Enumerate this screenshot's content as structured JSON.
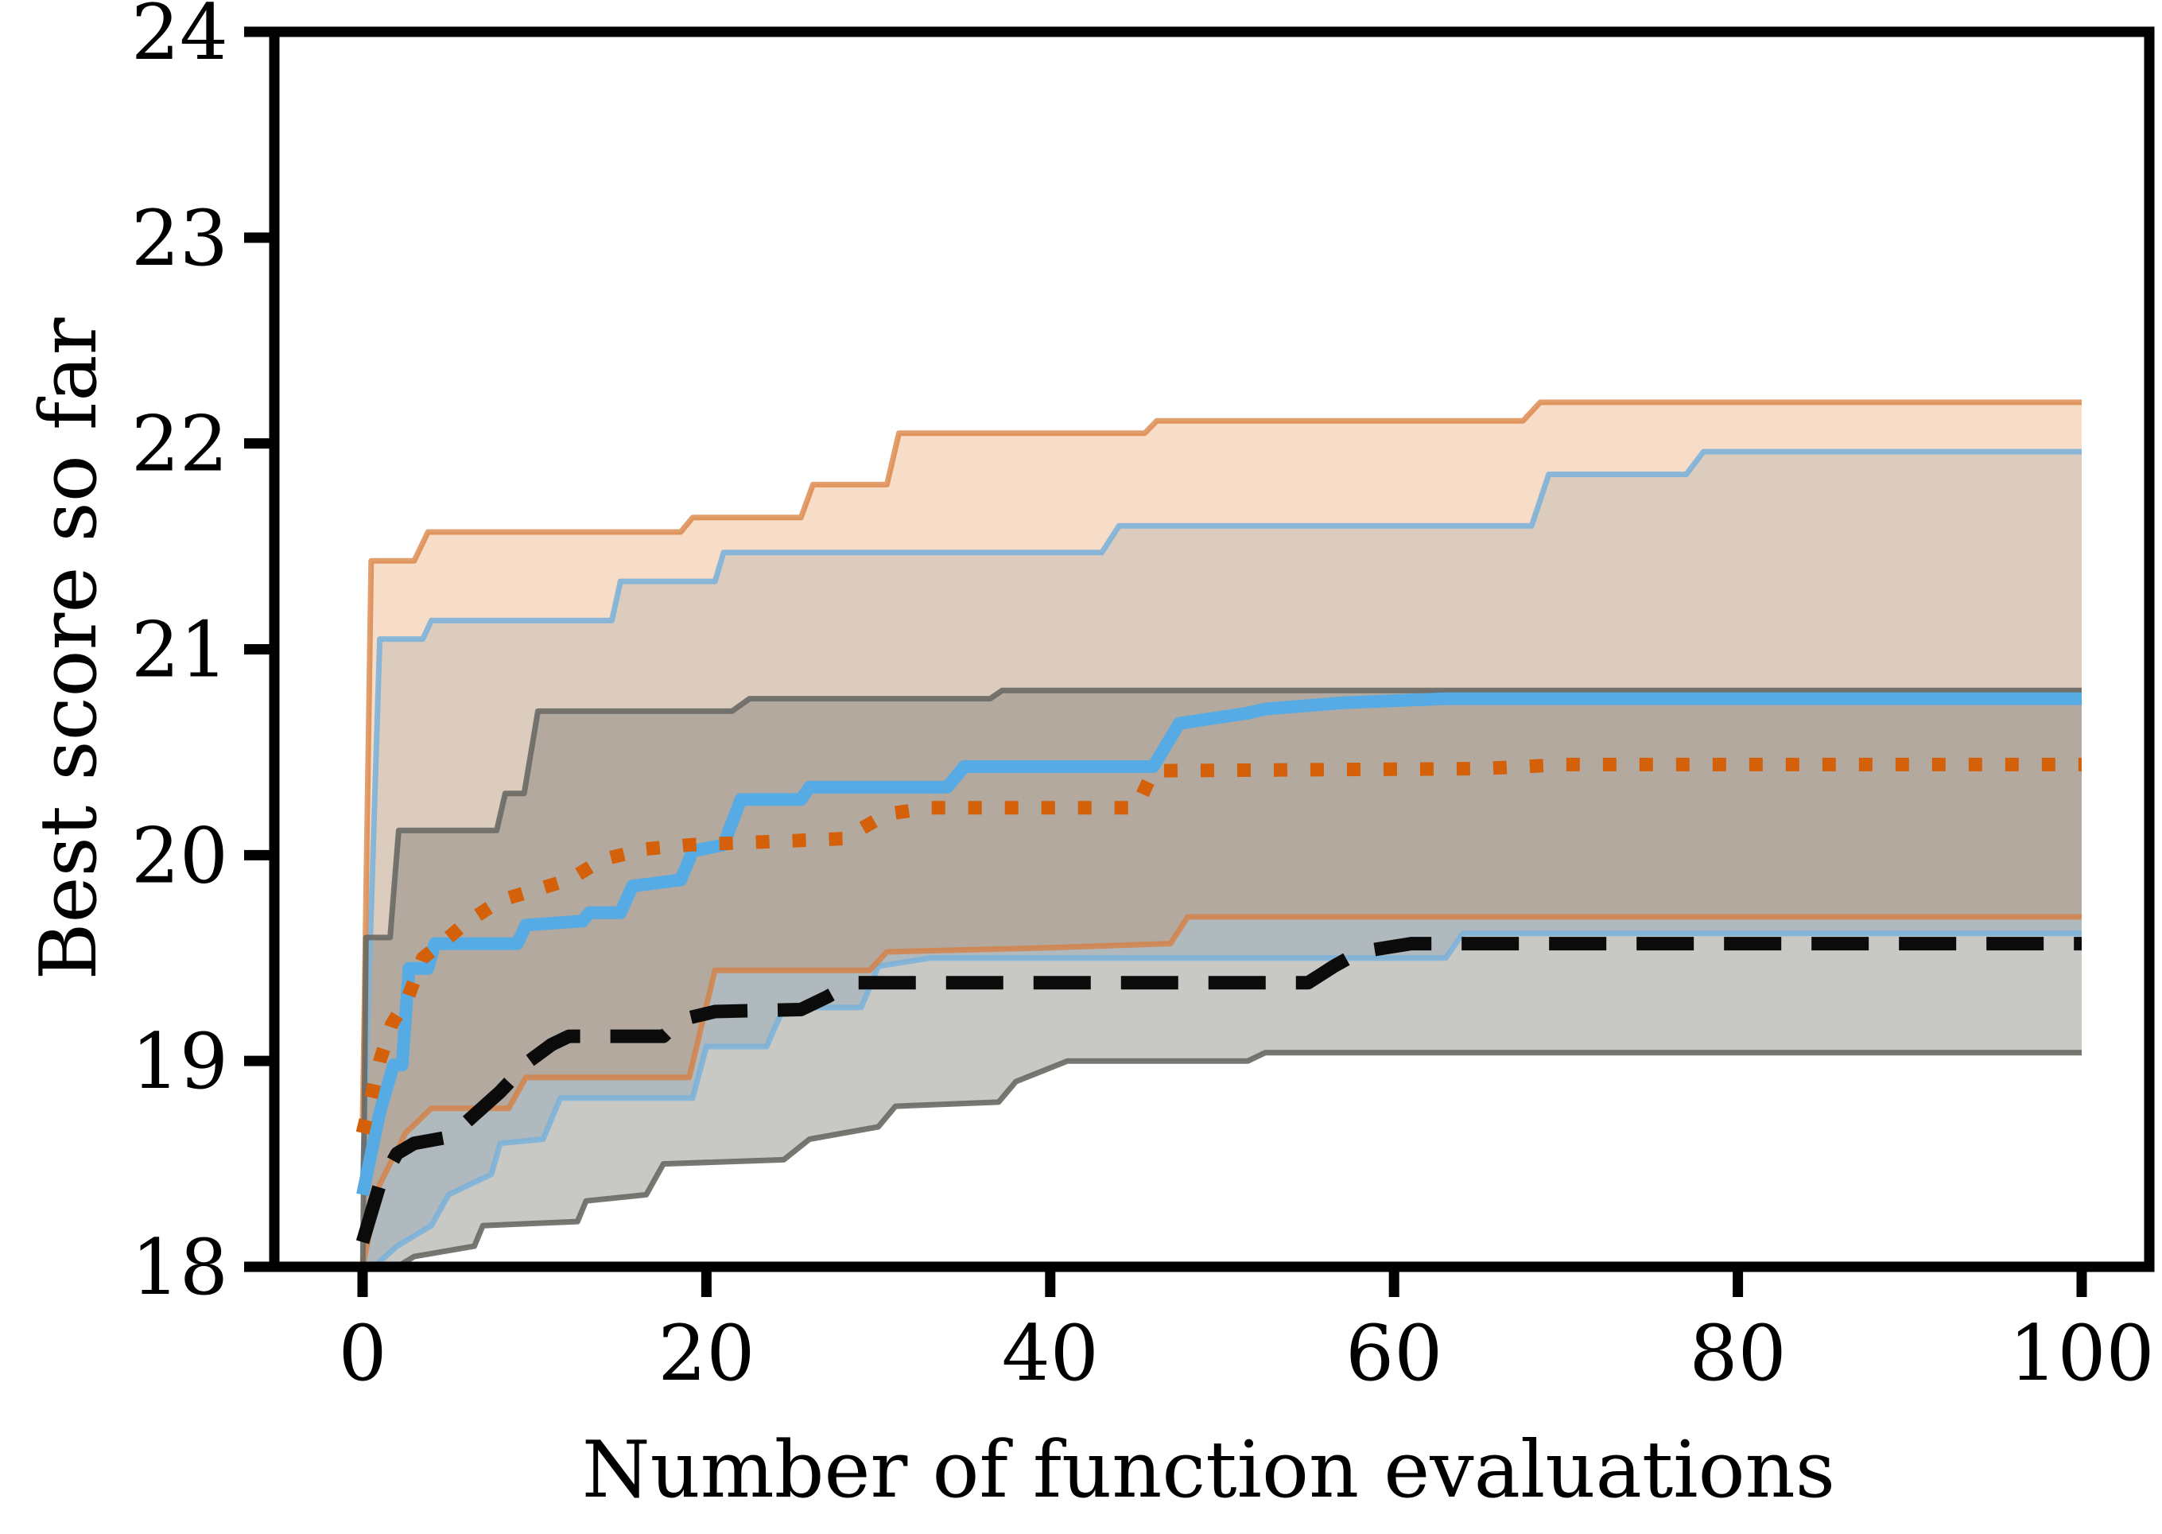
{
  "figure": {
    "background": "#ffffff",
    "frame_color": "#000000"
  },
  "chart_data": {
    "type": "line",
    "title": "",
    "xlabel": "Number of function evaluations",
    "ylabel": "Best score so far",
    "x_ticks": [
      0,
      20,
      40,
      60,
      80,
      100
    ],
    "y_ticks": [
      18,
      19,
      20,
      21,
      22,
      23,
      24
    ],
    "xlim": [
      -5.1,
      103.9
    ],
    "ylim": [
      18,
      24
    ],
    "grid": false,
    "legend_position": "none",
    "series": [
      {
        "name": "blue-solid",
        "line_style": "solid",
        "color": "#56abe4",
        "band_fill": "rgba(140,185,218,0.35)",
        "band_edge": "rgba(125,178,216,0.9)",
        "points": [
          [
            0,
            18.35
          ],
          [
            1,
            18.75
          ],
          [
            1.8,
            18.98
          ],
          [
            2.3,
            18.98
          ],
          [
            2.7,
            19.45
          ],
          [
            3.8,
            19.45
          ],
          [
            4.2,
            19.57
          ],
          [
            9,
            19.57
          ],
          [
            9.5,
            19.66
          ],
          [
            12.8,
            19.68
          ],
          [
            13.2,
            19.72
          ],
          [
            15,
            19.72
          ],
          [
            15.7,
            19.85
          ],
          [
            18.5,
            19.88
          ],
          [
            19.2,
            20.02
          ],
          [
            21,
            20.05
          ],
          [
            22,
            20.27
          ],
          [
            25.5,
            20.27
          ],
          [
            26,
            20.33
          ],
          [
            34,
            20.33
          ],
          [
            35,
            20.43
          ],
          [
            46,
            20.43
          ],
          [
            47.5,
            20.64
          ],
          [
            51.5,
            20.69
          ],
          [
            52.5,
            20.71
          ],
          [
            57,
            20.74
          ],
          [
            63,
            20.76
          ],
          [
            100,
            20.76
          ]
        ],
        "band_upper": [
          [
            0,
            18.4
          ],
          [
            1,
            21.05
          ],
          [
            3.5,
            21.05
          ],
          [
            4,
            21.14
          ],
          [
            14.5,
            21.14
          ],
          [
            15,
            21.33
          ],
          [
            20.5,
            21.33
          ],
          [
            21,
            21.47
          ],
          [
            43,
            21.47
          ],
          [
            44,
            21.6
          ],
          [
            68,
            21.6
          ],
          [
            69,
            21.85
          ],
          [
            77,
            21.85
          ],
          [
            78,
            21.96
          ],
          [
            100,
            21.96
          ]
        ],
        "band_lower": [
          [
            0,
            17.95
          ],
          [
            2,
            18.1
          ],
          [
            4,
            18.2
          ],
          [
            5,
            18.35
          ],
          [
            7.5,
            18.45
          ],
          [
            8,
            18.6
          ],
          [
            10.5,
            18.62
          ],
          [
            11.5,
            18.82
          ],
          [
            19.2,
            18.82
          ],
          [
            20,
            19.07
          ],
          [
            23.5,
            19.07
          ],
          [
            24.5,
            19.26
          ],
          [
            29,
            19.26
          ],
          [
            30,
            19.46
          ],
          [
            33,
            19.5
          ],
          [
            63,
            19.5
          ],
          [
            64,
            19.62
          ],
          [
            100,
            19.62
          ]
        ]
      },
      {
        "name": "orange-dotted",
        "line_style": "dotted",
        "color": "#d4600a",
        "band_fill": "rgba(232,148,85,0.33)",
        "band_edge": "rgba(216,125,60,0.75)",
        "points": [
          [
            0,
            18.65
          ],
          [
            1,
            19.0
          ],
          [
            1.7,
            19.18
          ],
          [
            2.6,
            19.3
          ],
          [
            3.5,
            19.5
          ],
          [
            5,
            19.6
          ],
          [
            6,
            19.67
          ],
          [
            8,
            19.78
          ],
          [
            10,
            19.83
          ],
          [
            12,
            19.88
          ],
          [
            14,
            19.98
          ],
          [
            16.5,
            20.03
          ],
          [
            19,
            20.05
          ],
          [
            28,
            20.08
          ],
          [
            30.5,
            20.2
          ],
          [
            33,
            20.23
          ],
          [
            45,
            20.23
          ],
          [
            46,
            20.41
          ],
          [
            65,
            20.42
          ],
          [
            70,
            20.44
          ],
          [
            100,
            20.44
          ]
        ],
        "band_upper": [
          [
            0,
            18.7
          ],
          [
            0.5,
            21.43
          ],
          [
            3,
            21.43
          ],
          [
            3.8,
            21.57
          ],
          [
            18.5,
            21.57
          ],
          [
            19.2,
            21.64
          ],
          [
            25.5,
            21.64
          ],
          [
            26.2,
            21.8
          ],
          [
            30.5,
            21.8
          ],
          [
            31.2,
            22.05
          ],
          [
            45.5,
            22.05
          ],
          [
            46.2,
            22.11
          ],
          [
            67.5,
            22.11
          ],
          [
            68.5,
            22.2
          ],
          [
            100,
            22.2
          ]
        ],
        "band_lower": [
          [
            0,
            18.0
          ],
          [
            1,
            18.4
          ],
          [
            2.5,
            18.65
          ],
          [
            4,
            18.77
          ],
          [
            8.5,
            18.77
          ],
          [
            9.5,
            18.92
          ],
          [
            19,
            18.92
          ],
          [
            19.8,
            19.2
          ],
          [
            20.5,
            19.44
          ],
          [
            29.5,
            19.44
          ],
          [
            30.5,
            19.53
          ],
          [
            40,
            19.55
          ],
          [
            47,
            19.57
          ],
          [
            48,
            19.7
          ],
          [
            100,
            19.7
          ]
        ]
      },
      {
        "name": "black-dashed",
        "line_style": "dashed",
        "color": "#0b0b0b",
        "band_fill": "rgba(118,118,110,0.40)",
        "band_edge": "rgba(105,105,100,0.9)",
        "points": [
          [
            0,
            18.12
          ],
          [
            1,
            18.4
          ],
          [
            2,
            18.55
          ],
          [
            3,
            18.6
          ],
          [
            5,
            18.63
          ],
          [
            6,
            18.7
          ],
          [
            8,
            18.85
          ],
          [
            9.7,
            19.0
          ],
          [
            11,
            19.08
          ],
          [
            12,
            19.12
          ],
          [
            17.5,
            19.12
          ],
          [
            18.5,
            19.2
          ],
          [
            20.5,
            19.24
          ],
          [
            25.5,
            19.25
          ],
          [
            27,
            19.31
          ],
          [
            28.5,
            19.38
          ],
          [
            55,
            19.38
          ],
          [
            56.5,
            19.46
          ],
          [
            58,
            19.53
          ],
          [
            61,
            19.57
          ],
          [
            100,
            19.57
          ]
        ],
        "band_upper": [
          [
            0,
            17.9
          ],
          [
            0.2,
            19.6
          ],
          [
            1.6,
            19.6
          ],
          [
            2.1,
            20.12
          ],
          [
            7.8,
            20.12
          ],
          [
            8.3,
            20.3
          ],
          [
            9.4,
            20.3
          ],
          [
            10.2,
            20.7
          ],
          [
            21.5,
            20.7
          ],
          [
            22.5,
            20.76
          ],
          [
            36.5,
            20.76
          ],
          [
            37.2,
            20.8
          ],
          [
            100,
            20.8
          ]
        ],
        "band_lower": [
          [
            0,
            17.9
          ],
          [
            3,
            18.05
          ],
          [
            6.5,
            18.1
          ],
          [
            7,
            18.2
          ],
          [
            12.5,
            18.22
          ],
          [
            13,
            18.32
          ],
          [
            16.5,
            18.35
          ],
          [
            17.5,
            18.5
          ],
          [
            24.5,
            18.52
          ],
          [
            26,
            18.62
          ],
          [
            30,
            18.68
          ],
          [
            31,
            18.78
          ],
          [
            37,
            18.8
          ],
          [
            38,
            18.9
          ],
          [
            41,
            19.0
          ],
          [
            51.5,
            19.0
          ],
          [
            52.5,
            19.04
          ],
          [
            100,
            19.04
          ]
        ]
      }
    ]
  }
}
